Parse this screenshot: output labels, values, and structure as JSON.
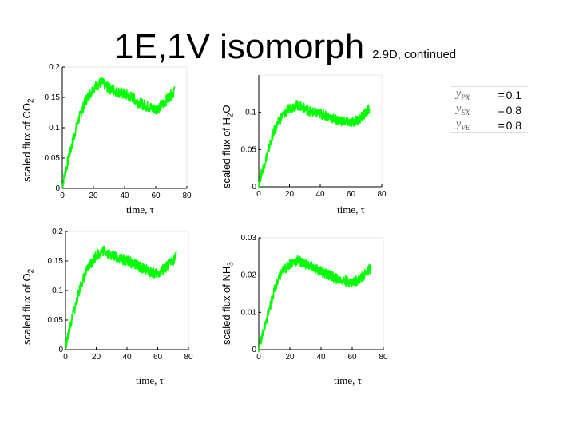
{
  "title": {
    "main": "1E,1V isomorph",
    "sub": "2.9D, continued"
  },
  "parameters": [
    {
      "symbol": "y",
      "subscript": "PX",
      "value": "0.1"
    },
    {
      "symbol": "y",
      "subscript": "EX",
      "value": "0.8"
    },
    {
      "symbol": "y",
      "subscript": "VE",
      "value": "0.8"
    }
  ],
  "colors": {
    "series": "#00ff00",
    "axis": "#000000"
  },
  "chart_data": [
    {
      "type": "line",
      "ylabel_prefix": "scaled flux of CO",
      "ylabel_sub": "2",
      "xlabel": "time, τ",
      "xlim": [
        0,
        80
      ],
      "ylim": [
        0,
        0.2
      ],
      "xticks": [
        "0",
        "20",
        "40",
        "60",
        "80"
      ],
      "yticks": [
        "0",
        "0.05",
        "0.1",
        "0.15",
        "0.2"
      ],
      "series": [
        {
          "x": [
            0,
            5,
            10,
            15,
            20,
            25,
            30,
            35,
            40,
            45,
            50,
            55,
            60,
            65,
            70,
            72
          ],
          "y": [
            0.005,
            0.06,
            0.11,
            0.145,
            0.165,
            0.175,
            0.165,
            0.16,
            0.155,
            0.15,
            0.14,
            0.135,
            0.13,
            0.14,
            0.155,
            0.16
          ]
        }
      ]
    },
    {
      "type": "line",
      "ylabel_prefix": "scaled flux of H",
      "ylabel_sub": "2",
      "ylabel_suffix": "O",
      "xlabel": "time, τ",
      "xlim": [
        0,
        80
      ],
      "ylim": [
        0,
        0.15
      ],
      "xticks": [
        "0",
        "20",
        "40",
        "60",
        "80"
      ],
      "yticks": [
        "0",
        "0.05",
        "0.1"
      ],
      "series": [
        {
          "x": [
            0,
            5,
            10,
            15,
            20,
            25,
            30,
            35,
            40,
            45,
            50,
            55,
            60,
            65,
            70,
            72
          ],
          "y": [
            0.005,
            0.04,
            0.075,
            0.095,
            0.105,
            0.11,
            0.105,
            0.1,
            0.098,
            0.095,
            0.09,
            0.088,
            0.086,
            0.09,
            0.1,
            0.105
          ]
        }
      ]
    },
    {
      "type": "line",
      "ylabel_prefix": "scaled flux of O",
      "ylabel_sub": "2",
      "xlabel": "time, τ",
      "xlim": [
        0,
        80
      ],
      "ylim": [
        0,
        0.2
      ],
      "xticks": [
        "0",
        "20",
        "40",
        "60",
        "80"
      ],
      "yticks": [
        "0",
        "0.05",
        "0.1",
        "0.15",
        "0.2"
      ],
      "series": [
        {
          "x": [
            0,
            5,
            10,
            15,
            20,
            25,
            30,
            35,
            40,
            45,
            50,
            55,
            60,
            65,
            70,
            72
          ],
          "y": [
            0.005,
            0.06,
            0.11,
            0.14,
            0.16,
            0.168,
            0.16,
            0.155,
            0.15,
            0.145,
            0.138,
            0.132,
            0.128,
            0.138,
            0.152,
            0.158
          ]
        }
      ]
    },
    {
      "type": "line",
      "ylabel_prefix": "scaled flux of NH",
      "ylabel_sub": "3",
      "xlabel": "time, τ",
      "xlim": [
        0,
        80
      ],
      "ylim": [
        0,
        0.03
      ],
      "xticks": [
        "0",
        "20",
        "40",
        "60",
        "80"
      ],
      "yticks": [
        "0",
        "0.01",
        "0.02",
        "0.03"
      ],
      "series": [
        {
          "x": [
            0,
            5,
            10,
            15,
            20,
            25,
            30,
            35,
            40,
            45,
            50,
            55,
            60,
            65,
            70,
            72
          ],
          "y": [
            0.0005,
            0.008,
            0.016,
            0.021,
            0.023,
            0.024,
            0.023,
            0.022,
            0.021,
            0.02,
            0.019,
            0.0185,
            0.018,
            0.019,
            0.021,
            0.022
          ]
        }
      ]
    }
  ]
}
